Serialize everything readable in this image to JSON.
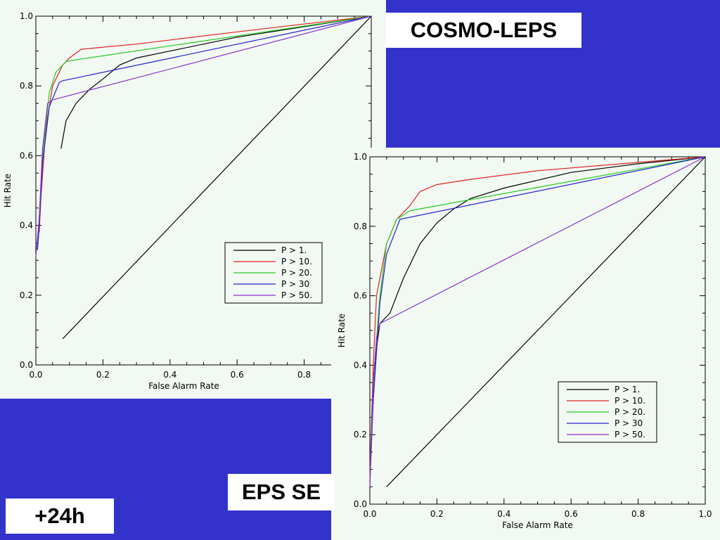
{
  "titles": {
    "cosmo_leps": "COSMO-LEPS",
    "eps_se": "EPS SE",
    "lead_time": "+24h"
  },
  "chart_data": [
    {
      "type": "line",
      "name": "COSMO-LEPS",
      "xlabel": "False Alarm Rate",
      "ylabel": "Hit Rate",
      "xlim": [
        0,
        1
      ],
      "ylim": [
        0,
        1
      ],
      "xticks": [
        "0.0",
        "0.2",
        "0.4",
        "0.6",
        "0.8"
      ],
      "yticks": [
        "0.0",
        "0.2",
        "0.4",
        "0.6",
        "0.8",
        "1.0"
      ],
      "legend_position": "bottom-right",
      "series": [
        {
          "name": "P > 1.",
          "color": "#000000",
          "x": [
            0.075,
            0.09,
            0.12,
            0.16,
            0.2,
            0.25,
            0.3,
            0.4,
            0.6,
            0.8,
            1.0
          ],
          "y": [
            0.62,
            0.7,
            0.75,
            0.79,
            0.82,
            0.86,
            0.88,
            0.9,
            0.94,
            0.97,
            1.0
          ]
        },
        {
          "name": "P > 10.",
          "color": "#dd2222",
          "x": [
            0.01,
            0.015,
            0.03,
            0.05,
            0.08,
            0.1,
            0.135,
            0.3,
            0.6,
            1.0
          ],
          "y": [
            0.38,
            0.48,
            0.68,
            0.8,
            0.86,
            0.88,
            0.905,
            0.92,
            0.955,
            1.0
          ]
        },
        {
          "name": "P > 20.",
          "color": "#22cc22",
          "x": [
            0.005,
            0.01,
            0.02,
            0.04,
            0.06,
            0.09,
            0.12,
            1.0
          ],
          "y": [
            0.34,
            0.42,
            0.6,
            0.78,
            0.84,
            0.87,
            0.875,
            1.0
          ]
        },
        {
          "name": "P > 30",
          "color": "#2222cc",
          "x": [
            0.005,
            0.01,
            0.02,
            0.04,
            0.07,
            0.08,
            1.0
          ],
          "y": [
            0.33,
            0.4,
            0.58,
            0.74,
            0.81,
            0.815,
            1.0
          ]
        },
        {
          "name": "P > 50.",
          "color": "#8833cc",
          "x": [
            0.0,
            0.01,
            0.02,
            0.035,
            0.05,
            1.0
          ],
          "y": [
            0.31,
            0.42,
            0.62,
            0.75,
            0.76,
            1.0
          ]
        },
        {
          "name": "",
          "color": "#000000",
          "x": [
            0.08,
            1.0
          ],
          "y": [
            0.075,
            1.0
          ]
        }
      ]
    },
    {
      "type": "line",
      "name": "EPS SE",
      "xlabel": "False Alarm Rate",
      "ylabel": "Hit Rate",
      "xlim": [
        0,
        1
      ],
      "ylim": [
        0,
        1
      ],
      "xticks": [
        "0.0",
        "0.2",
        "0.4",
        "0.6",
        "0.8",
        "1.0"
      ],
      "yticks": [
        "0.0",
        "0.2",
        "0.4",
        "0.6",
        "0.8",
        "1.0"
      ],
      "legend_position": "bottom-right",
      "series": [
        {
          "name": "P > 1.",
          "color": "#000000",
          "x": [
            0.0,
            0.01,
            0.02,
            0.03,
            0.06,
            0.1,
            0.15,
            0.2,
            0.25,
            0.3,
            0.4,
            0.6,
            0.8,
            1.0
          ],
          "y": [
            0.1,
            0.3,
            0.45,
            0.52,
            0.55,
            0.65,
            0.75,
            0.81,
            0.85,
            0.88,
            0.91,
            0.955,
            0.98,
            1.0
          ]
        },
        {
          "name": "P > 10.",
          "color": "#dd2222",
          "x": [
            0.0,
            0.01,
            0.02,
            0.05,
            0.08,
            0.12,
            0.15,
            0.2,
            0.3,
            0.5,
            1.0
          ],
          "y": [
            0.08,
            0.4,
            0.6,
            0.75,
            0.82,
            0.86,
            0.9,
            0.92,
            0.935,
            0.96,
            1.0
          ]
        },
        {
          "name": "P > 20.",
          "color": "#22cc22",
          "x": [
            0.0,
            0.01,
            0.03,
            0.05,
            0.08,
            0.12,
            1.0
          ],
          "y": [
            0.06,
            0.35,
            0.6,
            0.75,
            0.82,
            0.845,
            1.0
          ]
        },
        {
          "name": "P > 30",
          "color": "#2222cc",
          "x": [
            0.0,
            0.01,
            0.03,
            0.05,
            0.09,
            1.0
          ],
          "y": [
            0.05,
            0.3,
            0.58,
            0.72,
            0.82,
            1.0
          ]
        },
        {
          "name": "P > 50.",
          "color": "#8833cc",
          "x": [
            0.0,
            0.005,
            0.01,
            0.02,
            0.03,
            1.0
          ],
          "y": [
            0.05,
            0.2,
            0.35,
            0.48,
            0.52,
            1.0
          ]
        },
        {
          "name": "",
          "color": "#000000",
          "x": [
            0.05,
            1.0
          ],
          "y": [
            0.05,
            1.0
          ]
        }
      ]
    }
  ]
}
